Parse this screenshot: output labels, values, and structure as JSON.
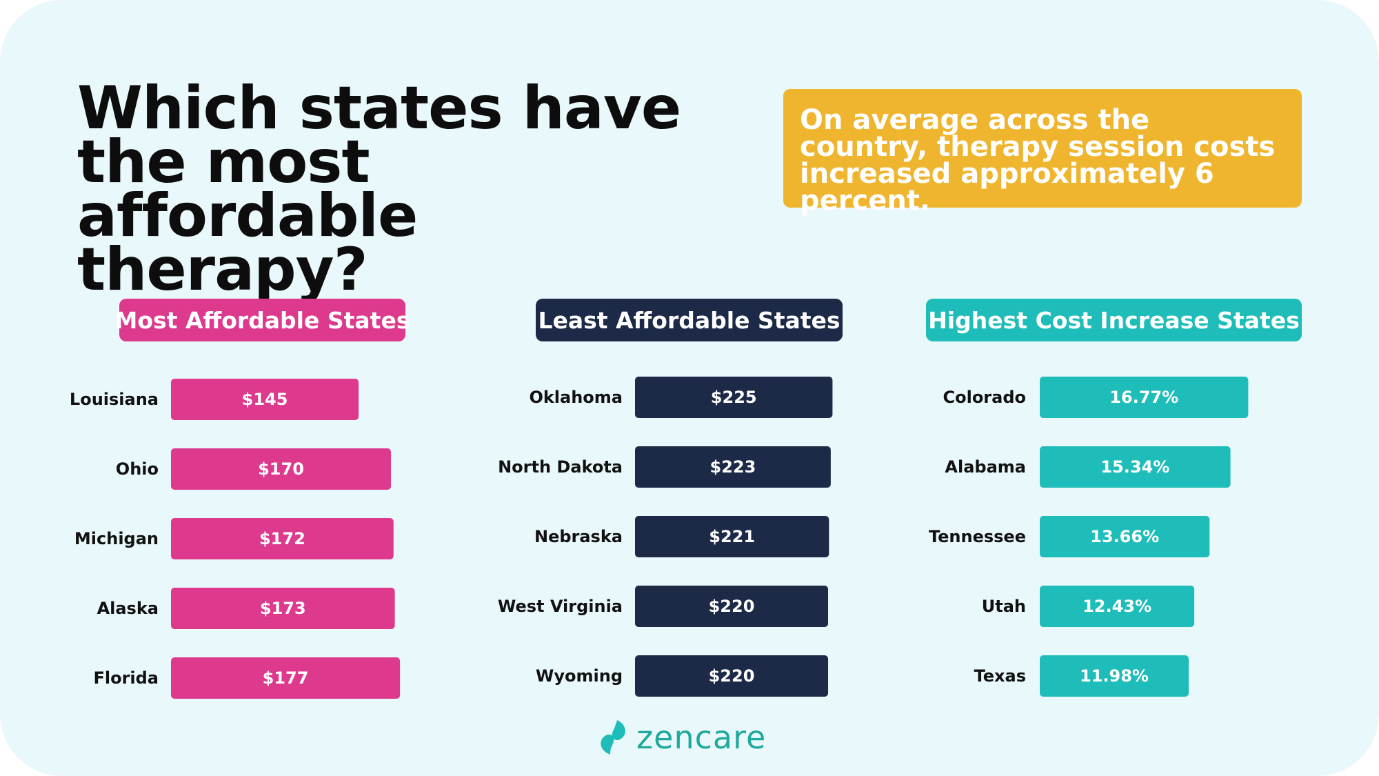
{
  "title": "Which states have the most affordable therapy?",
  "callout": "On average across the country, therapy session costs increased approximately 6 percent.",
  "brand": {
    "name": "zencare"
  },
  "colors": {
    "background": "#e9f8fb",
    "callout": "#f0b52e",
    "affordable": "#dd3a8e",
    "least_affordable": "#1c2a47",
    "increase": "#1fbdb9"
  },
  "chart_data": [
    {
      "type": "bar",
      "orientation": "horizontal",
      "title": "Most Affordable States",
      "color": "#dd3a8e",
      "categories": [
        "Louisiana",
        "Ohio",
        "Michigan",
        "Alaska",
        "Florida"
      ],
      "values": [
        145,
        170,
        172,
        173,
        177
      ],
      "labels": [
        "$145",
        "$170",
        "$172",
        "$173",
        "$177"
      ]
    },
    {
      "type": "bar",
      "orientation": "horizontal",
      "title": "Least Affordable States",
      "color": "#1c2a47",
      "categories": [
        "Oklahoma",
        "North Dakota",
        "Nebraska",
        "West Virginia",
        "Wyoming"
      ],
      "values": [
        225,
        223,
        221,
        220,
        220
      ],
      "labels": [
        "$225",
        "$223",
        "$221",
        "$220",
        "$220"
      ]
    },
    {
      "type": "bar",
      "orientation": "horizontal",
      "title": "Highest Cost Increase States",
      "color": "#1fbdb9",
      "categories": [
        "Colorado",
        "Alabama",
        "Tennessee",
        "Utah",
        "Texas"
      ],
      "values": [
        16.77,
        15.34,
        13.66,
        12.43,
        11.98
      ],
      "labels": [
        "16.77%",
        "15.34%",
        "13.66%",
        "12.43%",
        "11.98%"
      ]
    }
  ]
}
